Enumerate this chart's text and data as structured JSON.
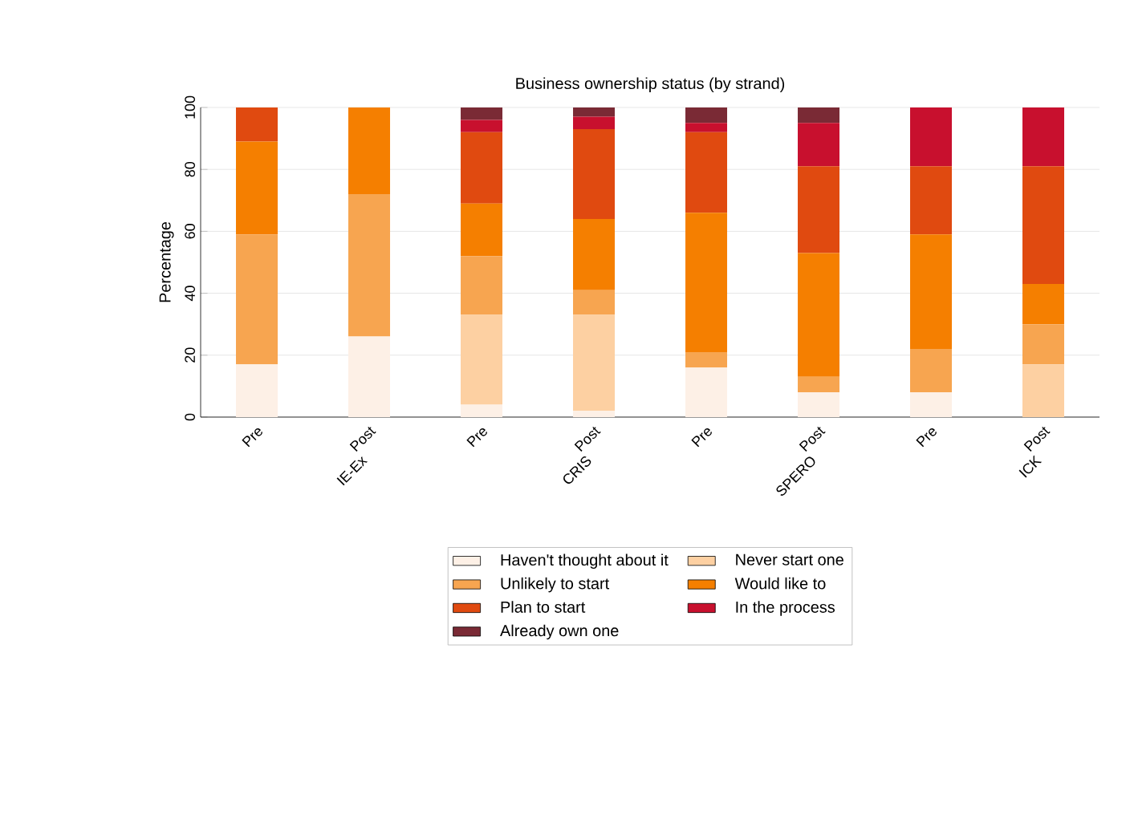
{
  "chart_data": {
    "type": "bar",
    "stacked": true,
    "title": "Business ownership status (by strand)",
    "ylabel": "Percentage",
    "categories": [
      "Pre",
      "Post",
      "Pre",
      "Post",
      "Pre",
      "Post",
      "Pre",
      "Post"
    ],
    "annotations": [
      "IE-Ex",
      "CRIS",
      "SPERO",
      "ICK"
    ],
    "ylim": [
      0,
      100
    ],
    "yticks": [
      0,
      20,
      40,
      60,
      80,
      100
    ],
    "grid": "y",
    "legend": "bottom",
    "series": [
      {
        "name": "Haven't thought about it",
        "color": "#fdf0e6",
        "values": [
          17,
          26,
          4,
          2,
          16,
          8,
          8,
          0
        ]
      },
      {
        "name": "Never start one",
        "color": "#fdd0a2",
        "values": [
          0,
          0,
          29,
          31,
          0,
          0,
          0,
          17
        ]
      },
      {
        "name": "Unlikely to start",
        "color": "#f7a550",
        "values": [
          42,
          46,
          19,
          8,
          5,
          5,
          14,
          13
        ]
      },
      {
        "name": "Would like to",
        "color": "#f57f00",
        "values": [
          30,
          28,
          17,
          23,
          45,
          40,
          37,
          13
        ]
      },
      {
        "name": "Plan to start",
        "color": "#e04a10",
        "values": [
          11,
          0,
          23,
          29,
          26,
          28,
          22,
          38
        ]
      },
      {
        "name": "In the process",
        "color": "#c8102e",
        "values": [
          0,
          0,
          4,
          4,
          3,
          14,
          19,
          19
        ]
      },
      {
        "name": "Already own one",
        "color": "#7a2a35",
        "values": [
          0,
          0,
          4,
          3,
          5,
          5,
          0,
          0
        ]
      }
    ]
  }
}
